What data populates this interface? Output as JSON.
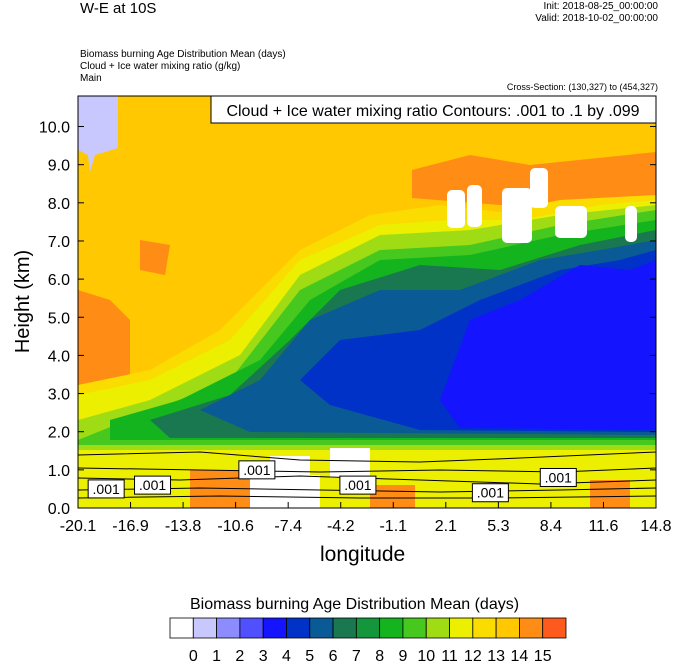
{
  "header": {
    "title": "W-E at 10S",
    "init": "Init: 2018-08-25_00:00:00",
    "valid": "Valid: 2018-10-02_00:00:00",
    "desc1": "Biomass burning Age Distribution Mean   (days)",
    "desc2": "Cloud + Ice water mixing ratio   (g/kg)",
    "desc3": "Main",
    "cross_section": "Cross-Section: (130,327) to (454,327)"
  },
  "chart_data": {
    "type": "heatmap",
    "title": "W-E at 10S",
    "xlabel": "longitude",
    "ylabel": "Height (km)",
    "xlim": [
      -20.1,
      14.8
    ],
    "ylim": [
      0.0,
      10.8
    ],
    "x_ticks": [
      "-20.1",
      "-16.9",
      "-13.8",
      "-10.6",
      "-7.4",
      "-4.2",
      "-1.1",
      "2.1",
      "5.3",
      "8.4",
      "11.6",
      "14.8"
    ],
    "y_ticks": [
      "0.0",
      "1.0",
      "2.0",
      "3.0",
      "4.0",
      "5.0",
      "6.0",
      "7.0",
      "8.0",
      "9.0",
      "10.0"
    ],
    "contour_title": "Cloud + Ice water mixing ratio Contours: .001 to .1 by .099",
    "contour_labels": [
      {
        "text": ".001",
        "x": -18.4,
        "y": 0.5
      },
      {
        "text": ".001",
        "x": -15.6,
        "y": 0.6
      },
      {
        "text": ".001",
        "x": -9.3,
        "y": 1.0
      },
      {
        "text": ".001",
        "x": -3.2,
        "y": 0.6
      },
      {
        "text": ".001",
        "x": 4.8,
        "y": 0.4
      },
      {
        "text": ".001",
        "x": 8.9,
        "y": 0.8
      }
    ],
    "colorbar": {
      "title": "Biomass burning Age Distribution Mean  (days)",
      "labels": [
        "0",
        "1",
        "2",
        "3",
        "4",
        "5",
        "6",
        "7",
        "8",
        "9",
        "10",
        "11",
        "12",
        "13",
        "14",
        "15"
      ],
      "colors": [
        "#ffffff",
        "#c8c8ff",
        "#8c8cff",
        "#5050ff",
        "#1414ff",
        "#0032c8",
        "#0a5a96",
        "#1a7850",
        "#14963c",
        "#14b41e",
        "#46c81e",
        "#a0dc14",
        "#ecf000",
        "#fadc00",
        "#ffc800",
        "#ff8c14",
        "#ff5a1e",
        "#ff1414"
      ]
    }
  }
}
